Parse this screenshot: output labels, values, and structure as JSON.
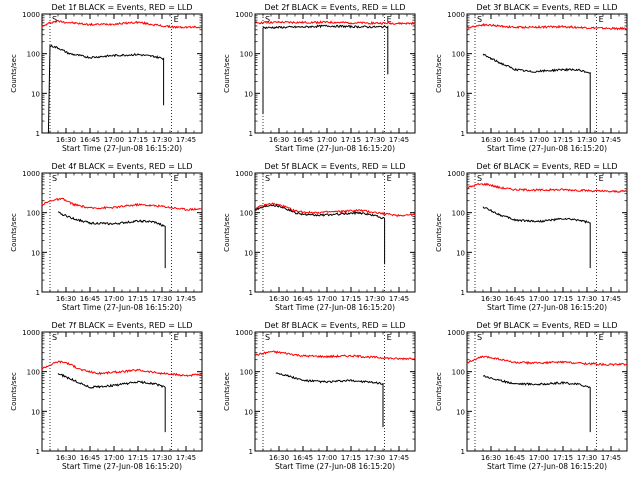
{
  "chart_data": [
    {
      "type": "line",
      "title": "Det 1f BLACK = Events, RED = LLD",
      "xlabel": "Start Time (27-Jun-08 16:15:20)",
      "ylabel": "Counts/sec",
      "y_scale": "log",
      "ylim": [
        1,
        1000
      ],
      "y_ticks": [
        "1",
        "10",
        "100",
        "1000"
      ],
      "xlim": [
        "16:15",
        "17:55"
      ],
      "x_ticks": [
        "16:30",
        "16:45",
        "17:00",
        "17:15",
        "17:30",
        "17:45"
      ],
      "markers": [
        {
          "time": "16:20",
          "label": "S"
        },
        {
          "time": "17:36",
          "label": "E"
        }
      ],
      "series": [
        {
          "color": "#ff0000",
          "points": [
            [
              "16:15",
              480
            ],
            [
              "16:20",
              600
            ],
            [
              "16:25",
              660
            ],
            [
              "16:30",
              620
            ],
            [
              "16:45",
              540
            ],
            [
              "17:00",
              560
            ],
            [
              "17:15",
              620
            ],
            [
              "17:30",
              500
            ],
            [
              "17:40",
              460
            ],
            [
              "17:55",
              470
            ]
          ]
        },
        {
          "color": "#000000",
          "points": [
            [
              "16:19",
              1
            ],
            [
              "16:20",
              160
            ],
            [
              "16:25",
              140
            ],
            [
              "16:32",
              100
            ],
            [
              "16:45",
              80
            ],
            [
              "17:00",
              90
            ],
            [
              "17:15",
              95
            ],
            [
              "17:25",
              85
            ],
            [
              "17:31",
              75
            ],
            [
              "17:31",
              5
            ]
          ]
        }
      ]
    },
    {
      "type": "line",
      "title": "Det 2f BLACK = Events, RED = LLD",
      "xlabel": "Start Time (27-Jun-08 16:15:20)",
      "ylabel": "Counts/sec",
      "y_scale": "log",
      "ylim": [
        1,
        1000
      ],
      "y_ticks": [
        "1",
        "10",
        "100",
        "1000"
      ],
      "xlim": [
        "16:15",
        "17:55"
      ],
      "x_ticks": [
        "16:30",
        "16:45",
        "17:00",
        "17:15",
        "17:30",
        "17:45"
      ],
      "markers": [
        {
          "time": "16:20",
          "label": "S"
        },
        {
          "time": "17:36",
          "label": "E"
        }
      ],
      "series": [
        {
          "color": "#ff0000",
          "points": [
            [
              "16:15",
              600
            ],
            [
              "16:30",
              620
            ],
            [
              "16:45",
              610
            ],
            [
              "17:00",
              620
            ],
            [
              "17:15",
              600
            ],
            [
              "17:30",
              590
            ],
            [
              "17:45",
              580
            ],
            [
              "17:55",
              580
            ]
          ]
        },
        {
          "color": "#000000",
          "points": [
            [
              "16:20",
              3
            ],
            [
              "16:20",
              450
            ],
            [
              "16:30",
              460
            ],
            [
              "16:45",
              470
            ],
            [
              "17:00",
              500
            ],
            [
              "17:15",
              480
            ],
            [
              "17:30",
              470
            ],
            [
              "17:38",
              480
            ],
            [
              "17:38",
              30
            ]
          ]
        }
      ]
    },
    {
      "type": "line",
      "title": "Det 3f BLACK = Events, RED = LLD",
      "xlabel": "Start Time (27-Jun-08 16:15:20)",
      "ylabel": "Counts/sec",
      "y_scale": "log",
      "ylim": [
        1,
        1000
      ],
      "y_ticks": [
        "1",
        "10",
        "100",
        "1000"
      ],
      "xlim": [
        "16:15",
        "17:55"
      ],
      "x_ticks": [
        "16:30",
        "16:45",
        "17:00",
        "17:15",
        "17:30",
        "17:45"
      ],
      "markers": [
        {
          "time": "16:20",
          "label": "S"
        },
        {
          "time": "17:36",
          "label": "E"
        }
      ],
      "series": [
        {
          "color": "#ff0000",
          "points": [
            [
              "16:15",
              450
            ],
            [
              "16:25",
              540
            ],
            [
              "16:35",
              500
            ],
            [
              "16:45",
              460
            ],
            [
              "17:00",
              470
            ],
            [
              "17:15",
              480
            ],
            [
              "17:30",
              450
            ],
            [
              "17:45",
              430
            ],
            [
              "17:55",
              430
            ]
          ]
        },
        {
          "color": "#000000",
          "points": [
            [
              "16:25",
              95
            ],
            [
              "16:35",
              60
            ],
            [
              "16:45",
              40
            ],
            [
              "16:55",
              35
            ],
            [
              "17:05",
              37
            ],
            [
              "17:15",
              40
            ],
            [
              "17:25",
              38
            ],
            [
              "17:32",
              33
            ],
            [
              "17:32",
              1
            ]
          ]
        }
      ]
    },
    {
      "type": "line",
      "title": "Det 4f BLACK = Events, RED = LLD",
      "xlabel": "Start Time (27-Jun-08 16:15:20)",
      "ylabel": "Counts/sec",
      "y_scale": "log",
      "ylim": [
        1,
        1000
      ],
      "y_ticks": [
        "1",
        "10",
        "100",
        "1000"
      ],
      "xlim": [
        "16:15",
        "17:55"
      ],
      "x_ticks": [
        "16:30",
        "16:45",
        "17:00",
        "17:15",
        "17:30",
        "17:45"
      ],
      "markers": [
        {
          "time": "16:20",
          "label": "S"
        },
        {
          "time": "17:36",
          "label": "E"
        }
      ],
      "series": [
        {
          "color": "#ff0000",
          "points": [
            [
              "16:15",
              160
            ],
            [
              "16:22",
              210
            ],
            [
              "16:28",
              220
            ],
            [
              "16:35",
              160
            ],
            [
              "16:45",
              130
            ],
            [
              "17:00",
              135
            ],
            [
              "17:15",
              160
            ],
            [
              "17:30",
              145
            ],
            [
              "17:45",
              120
            ],
            [
              "17:55",
              125
            ]
          ]
        },
        {
          "color": "#000000",
          "points": [
            [
              "16:25",
              100
            ],
            [
              "16:35",
              70
            ],
            [
              "16:45",
              55
            ],
            [
              "17:00",
              52
            ],
            [
              "17:15",
              62
            ],
            [
              "17:25",
              58
            ],
            [
              "17:32",
              45
            ],
            [
              "17:32",
              4
            ]
          ]
        }
      ]
    },
    {
      "type": "line",
      "title": "Det 5f BLACK = Events, RED = LLD",
      "xlabel": "Start Time (27-Jun-08 16:15:20)",
      "ylabel": "Counts/sec",
      "y_scale": "log",
      "ylim": [
        1,
        1000
      ],
      "y_ticks": [
        "1",
        "10",
        "100",
        "1000"
      ],
      "xlim": [
        "16:15",
        "17:55"
      ],
      "x_ticks": [
        "16:30",
        "16:45",
        "17:00",
        "17:15",
        "17:30",
        "17:45"
      ],
      "markers": [
        {
          "time": "16:20",
          "label": "S"
        },
        {
          "time": "17:36",
          "label": "E"
        }
      ],
      "series": [
        {
          "color": "#ff0000",
          "points": [
            [
              "16:15",
              130
            ],
            [
              "16:25",
              170
            ],
            [
              "16:32",
              150
            ],
            [
              "16:40",
              110
            ],
            [
              "16:50",
              100
            ],
            [
              "17:05",
              105
            ],
            [
              "17:20",
              115
            ],
            [
              "17:35",
              95
            ],
            [
              "17:45",
              85
            ],
            [
              "17:55",
              90
            ]
          ]
        },
        {
          "color": "#000000",
          "points": [
            [
              "16:15",
              120
            ],
            [
              "16:25",
              160
            ],
            [
              "16:32",
              140
            ],
            [
              "16:40",
              100
            ],
            [
              "16:50",
              85
            ],
            [
              "17:05",
              90
            ],
            [
              "17:20",
              100
            ],
            [
              "17:30",
              85
            ],
            [
              "17:36",
              70
            ],
            [
              "17:36",
              5
            ]
          ]
        }
      ]
    },
    {
      "type": "line",
      "title": "Det 6f BLACK = Events, RED = LLD",
      "xlabel": "Start Time (27-Jun-08 16:15:20)",
      "ylabel": "Counts/sec",
      "y_scale": "log",
      "ylim": [
        1,
        1000
      ],
      "y_ticks": [
        "1",
        "10",
        "100",
        "1000"
      ],
      "xlim": [
        "16:15",
        "17:55"
      ],
      "x_ticks": [
        "16:30",
        "16:45",
        "17:00",
        "17:15",
        "17:30",
        "17:45"
      ],
      "markers": [
        {
          "time": "16:20",
          "label": "S"
        },
        {
          "time": "17:36",
          "label": "E"
        }
      ],
      "series": [
        {
          "color": "#ff0000",
          "points": [
            [
              "16:15",
              420
            ],
            [
              "16:22",
              520
            ],
            [
              "16:28",
              520
            ],
            [
              "16:35",
              430
            ],
            [
              "16:45",
              380
            ],
            [
              "17:00",
              370
            ],
            [
              "17:15",
              380
            ],
            [
              "17:30",
              360
            ],
            [
              "17:45",
              340
            ],
            [
              "17:55",
              350
            ]
          ]
        },
        {
          "color": "#000000",
          "points": [
            [
              "16:25",
              140
            ],
            [
              "16:35",
              90
            ],
            [
              "16:45",
              65
            ],
            [
              "17:00",
              60
            ],
            [
              "17:15",
              70
            ],
            [
              "17:25",
              65
            ],
            [
              "17:32",
              55
            ],
            [
              "17:32",
              4
            ]
          ]
        }
      ]
    },
    {
      "type": "line",
      "title": "Det 7f BLACK = Events, RED = LLD",
      "xlabel": "Start Time (27-Jun-08 16:15:20)",
      "ylabel": "Counts/sec",
      "y_scale": "log",
      "ylim": [
        1,
        1000
      ],
      "y_ticks": [
        "1",
        "10",
        "100",
        "1000"
      ],
      "xlim": [
        "16:15",
        "17:55"
      ],
      "x_ticks": [
        "16:30",
        "16:45",
        "17:00",
        "17:15",
        "17:30",
        "17:45"
      ],
      "markers": [
        {
          "time": "16:20",
          "label": "S"
        },
        {
          "time": "17:36",
          "label": "E"
        }
      ],
      "series": [
        {
          "color": "#ff0000",
          "points": [
            [
              "16:15",
              120
            ],
            [
              "16:25",
              180
            ],
            [
              "16:30",
              170
            ],
            [
              "16:40",
              110
            ],
            [
              "16:50",
              90
            ],
            [
              "17:05",
              100
            ],
            [
              "17:15",
              110
            ],
            [
              "17:30",
              90
            ],
            [
              "17:45",
              80
            ],
            [
              "17:55",
              85
            ]
          ]
        },
        {
          "color": "#000000",
          "points": [
            [
              "16:25",
              90
            ],
            [
              "16:35",
              60
            ],
            [
              "16:45",
              40
            ],
            [
              "17:00",
              45
            ],
            [
              "17:15",
              55
            ],
            [
              "17:25",
              50
            ],
            [
              "17:32",
              40
            ],
            [
              "17:32",
              3
            ]
          ]
        }
      ]
    },
    {
      "type": "line",
      "title": "Det 8f BLACK = Events, RED = LLD",
      "xlabel": "Start Time (27-Jun-08 16:15:20)",
      "ylabel": "Counts/sec",
      "y_scale": "log",
      "ylim": [
        1,
        1000
      ],
      "y_ticks": [
        "1",
        "10",
        "100",
        "1000"
      ],
      "xlim": [
        "16:15",
        "17:55"
      ],
      "x_ticks": [
        "16:30",
        "16:45",
        "17:00",
        "17:15",
        "17:30",
        "17:45"
      ],
      "markers": [
        {
          "time": "16:20",
          "label": "S"
        },
        {
          "time": "17:36",
          "label": "E"
        }
      ],
      "series": [
        {
          "color": "#ff0000",
          "points": [
            [
              "16:15",
              260
            ],
            [
              "16:25",
              320
            ],
            [
              "16:32",
              300
            ],
            [
              "16:45",
              250
            ],
            [
              "17:00",
              240
            ],
            [
              "17:15",
              250
            ],
            [
              "17:30",
              230
            ],
            [
              "17:45",
              210
            ],
            [
              "17:55",
              220
            ]
          ]
        },
        {
          "color": "#000000",
          "points": [
            [
              "16:28",
              95
            ],
            [
              "16:35",
              80
            ],
            [
              "16:45",
              60
            ],
            [
              "17:00",
              55
            ],
            [
              "17:15",
              60
            ],
            [
              "17:25",
              55
            ],
            [
              "17:35",
              50
            ],
            [
              "17:35",
              4
            ]
          ]
        }
      ]
    },
    {
      "type": "line",
      "title": "Det 9f BLACK = Events, RED = LLD",
      "xlabel": "Start Time (27-Jun-08 16:15:20)",
      "ylabel": "Counts/sec",
      "y_scale": "log",
      "ylim": [
        1,
        1000
      ],
      "y_ticks": [
        "1",
        "10",
        "100",
        "1000"
      ],
      "xlim": [
        "16:15",
        "17:55"
      ],
      "x_ticks": [
        "16:30",
        "16:45",
        "17:00",
        "17:15",
        "17:30",
        "17:45"
      ],
      "markers": [
        {
          "time": "16:20",
          "label": "S"
        },
        {
          "time": "17:36",
          "label": "E"
        }
      ],
      "series": [
        {
          "color": "#ff0000",
          "points": [
            [
              "16:15",
              170
            ],
            [
              "16:25",
              240
            ],
            [
              "16:32",
              220
            ],
            [
              "16:45",
              170
            ],
            [
              "17:00",
              165
            ],
            [
              "17:15",
              175
            ],
            [
              "17:30",
              160
            ],
            [
              "17:45",
              150
            ],
            [
              "17:55",
              155
            ]
          ]
        },
        {
          "color": "#000000",
          "points": [
            [
              "16:25",
              80
            ],
            [
              "16:35",
              60
            ],
            [
              "16:45",
              50
            ],
            [
              "17:00",
              48
            ],
            [
              "17:15",
              52
            ],
            [
              "17:25",
              48
            ],
            [
              "17:32",
              40
            ],
            [
              "17:32",
              3
            ]
          ]
        }
      ]
    }
  ]
}
